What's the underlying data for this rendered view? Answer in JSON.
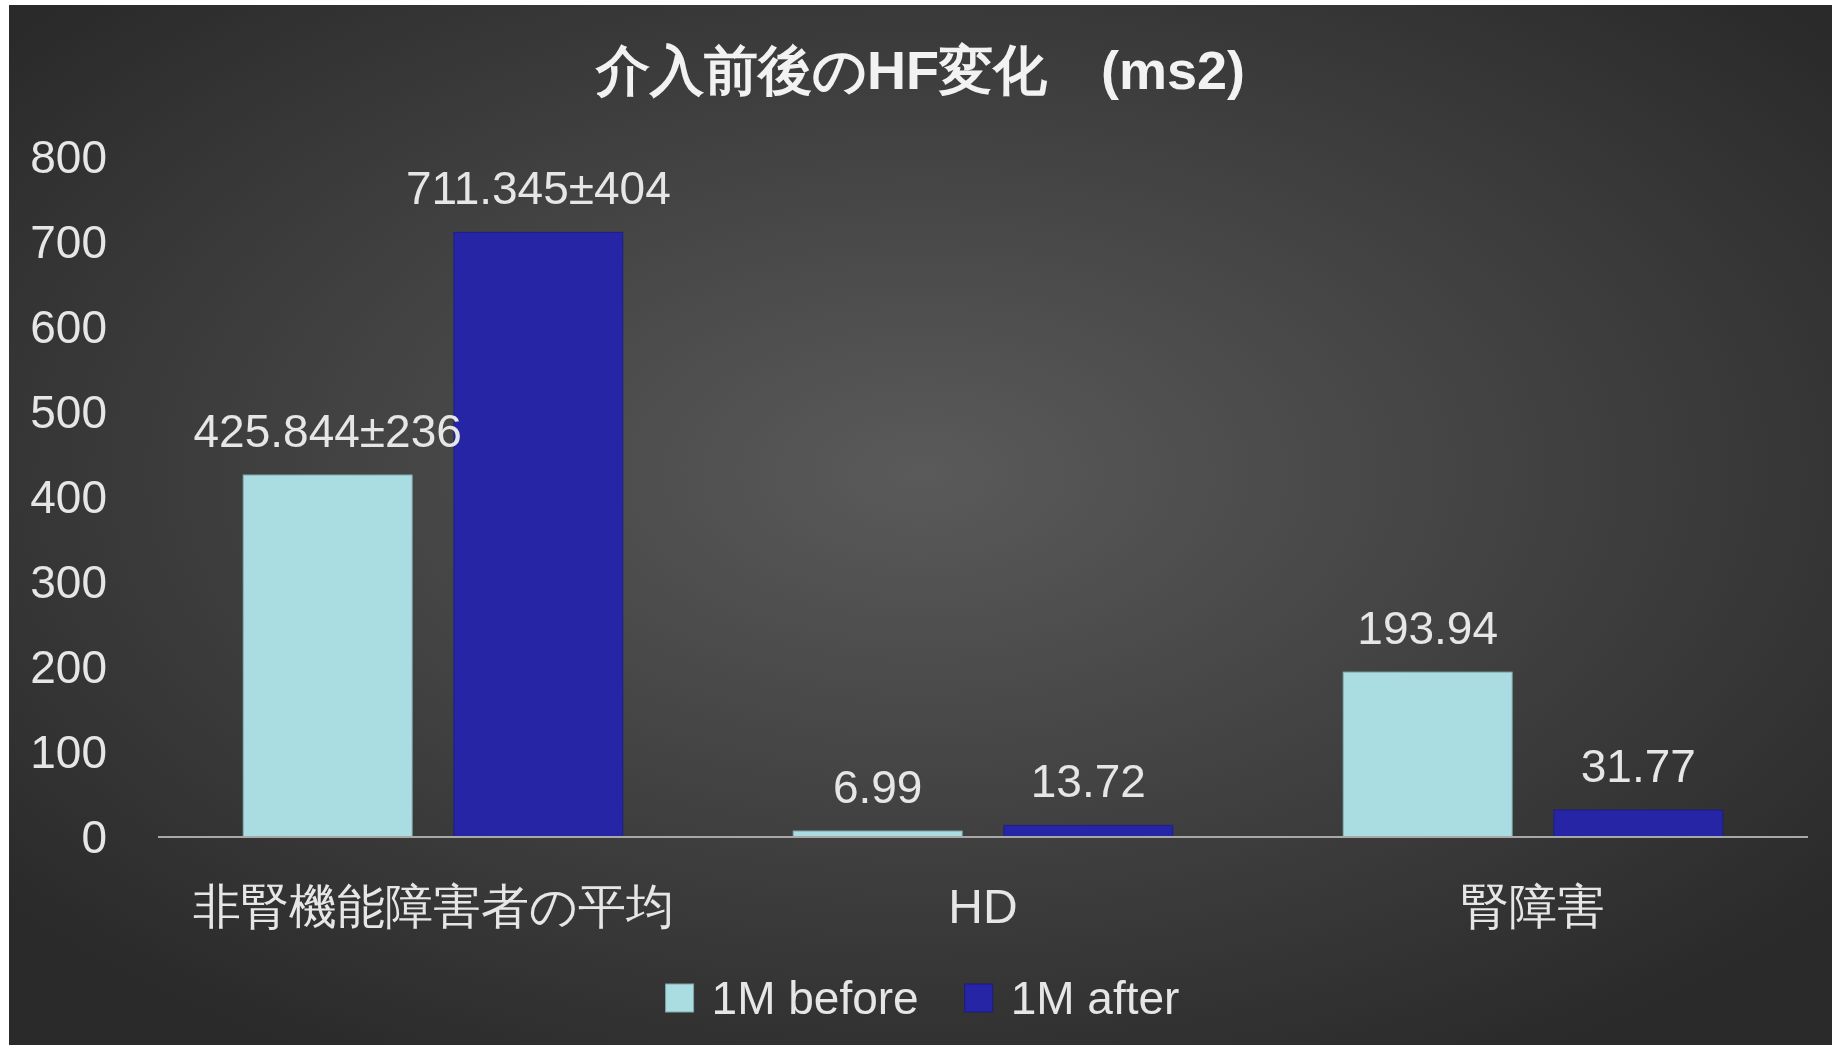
{
  "chart_data": {
    "type": "bar",
    "title": "介入前後のHF変化　(ms2)",
    "categories": [
      "非腎機能障害者の平均",
      "HD",
      "腎障害"
    ],
    "series": [
      {
        "name": "1M before",
        "color": "#aadde1",
        "values": [
          425.844,
          6.99,
          193.94
        ],
        "value_labels": [
          "425.844±236",
          "6.99",
          "193.94"
        ]
      },
      {
        "name": "1M after",
        "color": "#2525a5",
        "values": [
          711.345,
          13.72,
          31.77
        ],
        "value_labels": [
          "711.345±404",
          "13.72",
          "31.77"
        ]
      }
    ],
    "ylim": [
      0,
      800
    ],
    "yticks": [
      0,
      100,
      200,
      300,
      400,
      500,
      600,
      700,
      800
    ],
    "grid": false,
    "legend": "bottom"
  }
}
